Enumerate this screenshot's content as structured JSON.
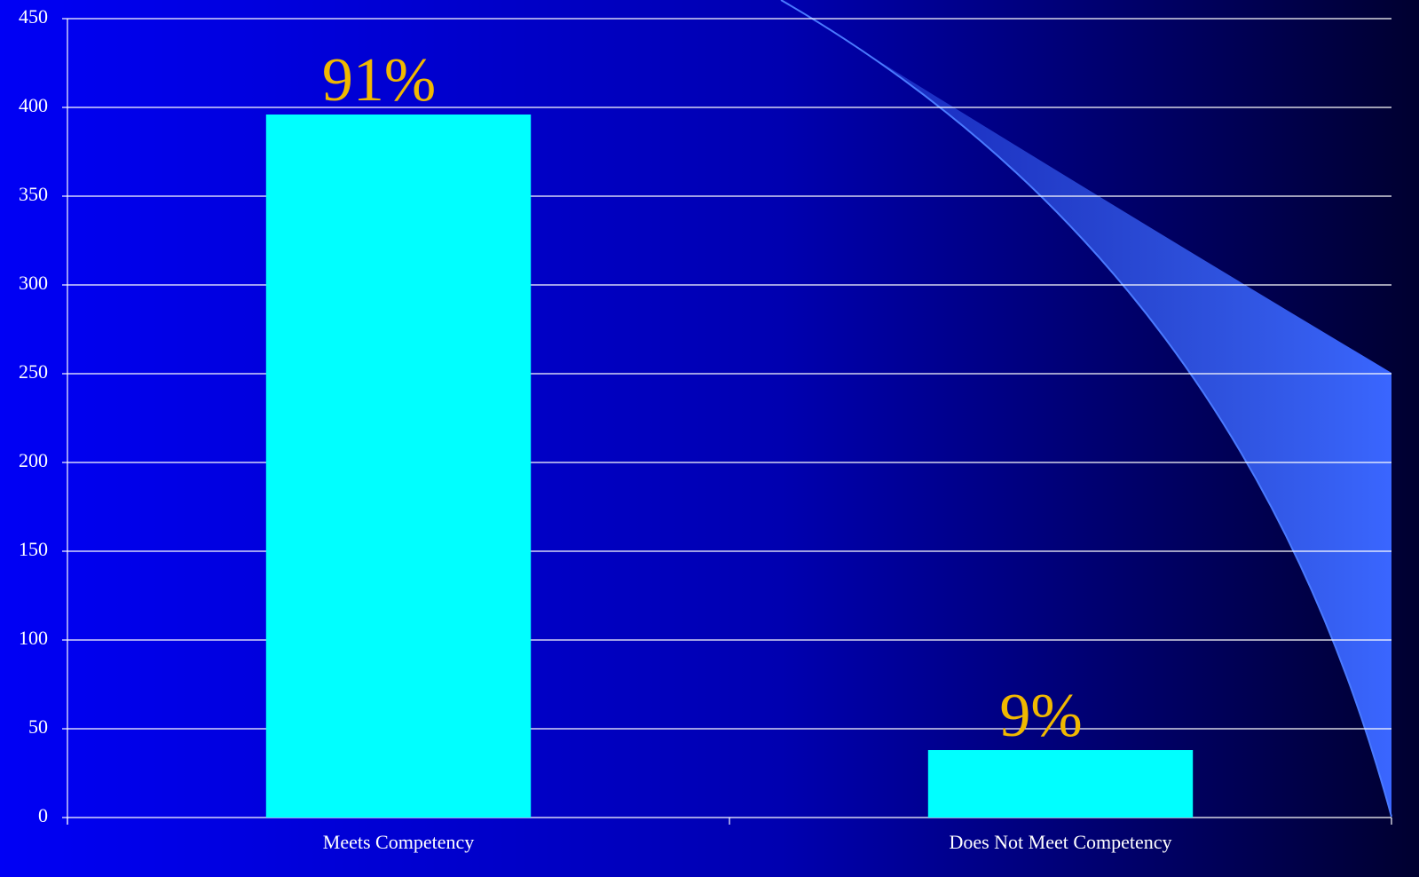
{
  "chart_data": {
    "type": "bar",
    "categories": [
      "Meets Competency",
      "Does Not Meet Competency"
    ],
    "values": [
      396,
      38
    ],
    "annotations": [
      "91%",
      "9%"
    ],
    "color": "#00ffff",
    "ylim": [
      0,
      450
    ],
    "yticks": [
      0,
      50,
      100,
      150,
      200,
      250,
      300,
      350,
      400,
      450
    ],
    "grid": true
  }
}
